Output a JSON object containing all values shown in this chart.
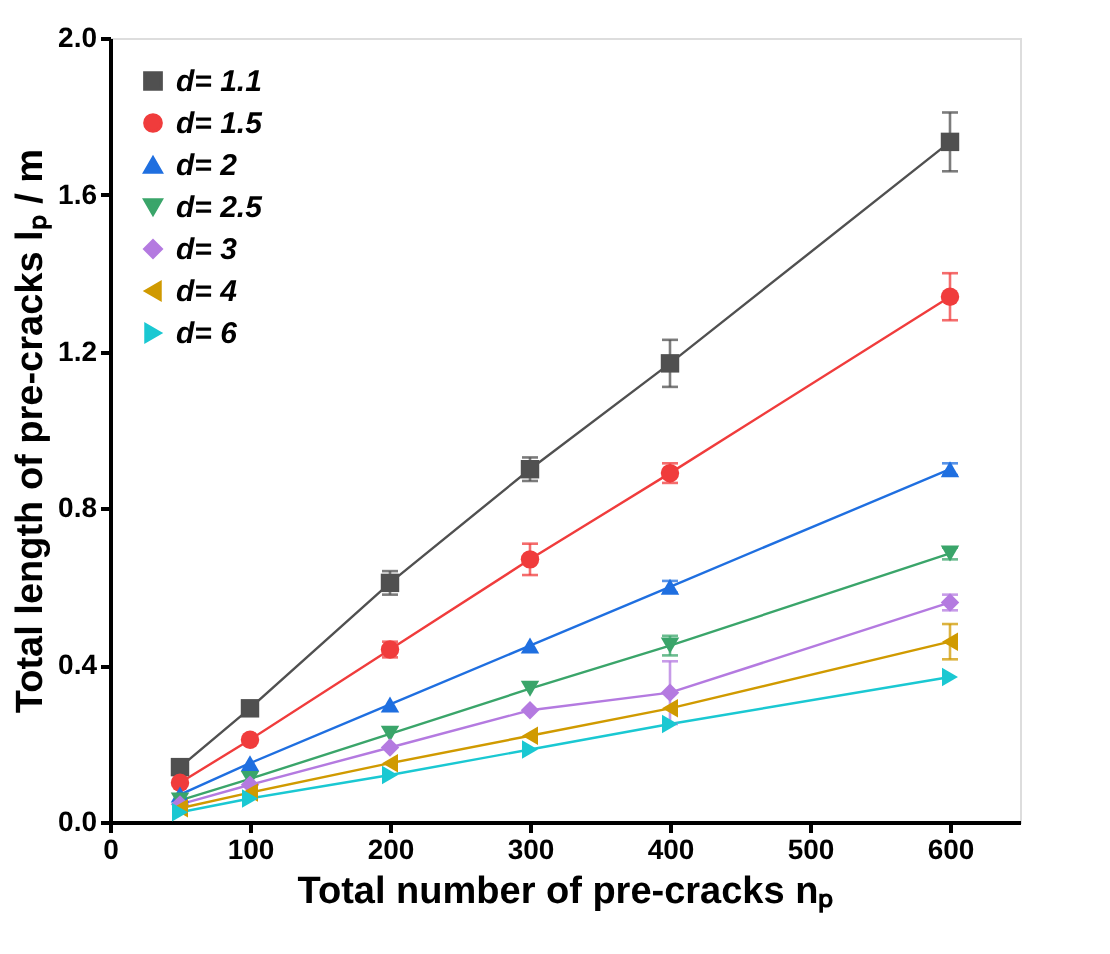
{
  "chart_data": {
    "type": "line",
    "xlabel": "Total number of pre-cracks nₚ",
    "ylabel": "Total length of pre-cracks lₚ / m",
    "x": [
      50,
      100,
      200,
      300,
      400,
      600
    ],
    "xlim": [
      0,
      650
    ],
    "xticks": [
      0,
      100,
      200,
      300,
      400,
      500,
      600
    ],
    "ylim": [
      0,
      2.0
    ],
    "yticks": [
      {
        "value": 0,
        "label": "0.0"
      },
      0.4,
      0.8,
      1.2,
      1.6,
      {
        "value": 2,
        "label": "2.0"
      }
    ],
    "grid": false,
    "legend": "top left",
    "line_style": "solid",
    "series": [
      {
        "name": "d= 1.1",
        "color": "#505050",
        "marker": "square",
        "values": [
          0.14,
          0.29,
          0.61,
          0.9,
          1.17,
          1.735
        ],
        "errors": [
          null,
          null,
          0.03,
          0.03,
          0.06,
          0.075
        ]
      },
      {
        "name": "d= 1.5",
        "color": "#f03c3c",
        "marker": "circle",
        "values": [
          0.1,
          0.21,
          0.44,
          0.67,
          0.89,
          1.34
        ],
        "errors": [
          null,
          null,
          0.02,
          0.04,
          0.025,
          0.06
        ]
      },
      {
        "name": "d= 2",
        "color": "#1f6fe0",
        "marker": "triangle",
        "values": [
          0.07,
          0.15,
          0.3,
          0.45,
          0.6,
          0.9
        ],
        "errors": [
          null,
          null,
          null,
          null,
          0.015,
          0.015
        ]
      },
      {
        "name": "d= 2.5",
        "color": "#3aa56a",
        "marker": "triangle-down",
        "values": [
          0.055,
          0.11,
          0.225,
          0.34,
          0.45,
          0.685
        ],
        "errors": [
          null,
          null,
          null,
          null,
          0.025,
          0.015
        ]
      },
      {
        "name": "d= 3",
        "color": "#b47ae0",
        "marker": "diamond",
        "values": [
          0.045,
          0.095,
          0.19,
          0.285,
          0.33,
          0.56
        ],
        "errors": [
          null,
          null,
          null,
          null,
          0.08,
          0.02
        ]
      },
      {
        "name": "d= 4",
        "color": "#d09a00",
        "marker": "triangle-left",
        "values": [
          0.035,
          0.075,
          0.15,
          0.22,
          0.29,
          0.46
        ],
        "errors": [
          null,
          null,
          null,
          null,
          null,
          0.045
        ]
      },
      {
        "name": "d= 6",
        "color": "#1ac8d2",
        "marker": "triangle-right",
        "values": [
          0.025,
          0.06,
          0.12,
          0.185,
          0.25,
          0.37
        ]
      }
    ]
  }
}
